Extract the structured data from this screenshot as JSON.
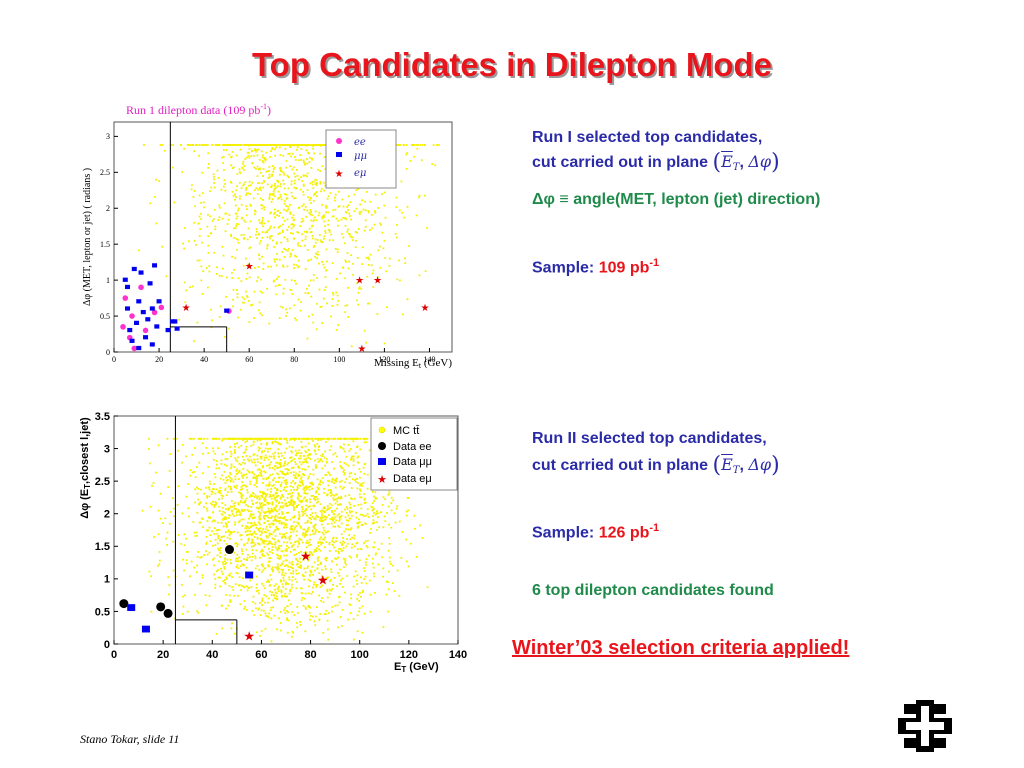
{
  "slide": {
    "title": "Top Candidates in Dilepton Mode",
    "footer": "Stano Tokar, slide 11",
    "note": "Winter’03 selection criteria applied!"
  },
  "text_run1": {
    "line1": "Run I selected top candidates,",
    "line2": "cut carried out in plane",
    "plane_sym1": "E",
    "plane_sub": "T",
    "plane_sep": ",",
    "plane_sym2": "Δφ",
    "def_sym": "Δφ ≡",
    "def_text": "angle(MET, lepton (jet) direction)",
    "sample_label": "Sample:",
    "sample_value": "109 pb",
    "sample_exp": "-1"
  },
  "text_run2": {
    "line1": "Run II selected top candidates,",
    "line2": "cut carried out in plane",
    "plane_sym1": "E",
    "plane_sub": "T",
    "plane_sep": ",",
    "plane_sym2": "Δφ",
    "sample_label": "Sample:",
    "sample_value": "126 pb",
    "sample_exp": "-1",
    "found": "6 top dilepton candidates found"
  },
  "colors": {
    "title": "#e8161c",
    "blue_text": "#2b2ba8",
    "green_text": "#1f8a4a",
    "mc_points": "#ffff00",
    "ee": "#ff33cc",
    "mumu": "#0000ee",
    "emu": "#dd0000",
    "data_ee_run2": "#000000"
  },
  "chart_data": [
    {
      "type": "scatter",
      "title": "Run 1 dilepton data (109 pb",
      "title_exp": "-1",
      "title_close": ")",
      "xlabel": "Missing E",
      "xlabel_sub": "t",
      "xlabel_unit": " (GeV)",
      "ylabel": "Δφ (MET, lepton or jet) ( radians )",
      "xlim": [
        0,
        150
      ],
      "ylim": [
        0,
        3.2
      ],
      "xticks": [
        "0",
        "20",
        "40",
        "60",
        "80",
        "100",
        "120",
        "140"
      ],
      "xtick_values": [
        0,
        20,
        40,
        60,
        80,
        100,
        120,
        140
      ],
      "yticks": [
        "0",
        "0.5",
        "1",
        "1.5",
        "2",
        "2.5",
        "3"
      ],
      "ytick_values": [
        0,
        0.5,
        1,
        1.5,
        2,
        2.5,
        3
      ],
      "cut_lines": [
        [
          25,
          0,
          25,
          3.2
        ],
        [
          25,
          0.35,
          50,
          0.35
        ],
        [
          50,
          0,
          50,
          0.35
        ]
      ],
      "legend": [
        "ee",
        "μμ",
        "eμ"
      ],
      "series": [
        {
          "name": "ee",
          "marker": "circle",
          "points": [
            [
              4,
              0.35
            ],
            [
              5,
              0.75
            ],
            [
              7,
              0.2
            ],
            [
              8,
              0.5
            ],
            [
              9,
              0.05
            ],
            [
              12,
              0.9
            ],
            [
              14,
              0.3
            ],
            [
              18,
              0.55
            ],
            [
              21,
              0.62
            ],
            [
              51,
              0.57
            ]
          ]
        },
        {
          "name": "μμ",
          "marker": "square",
          "points": [
            [
              5,
              1.0
            ],
            [
              6,
              0.6
            ],
            [
              6,
              0.9
            ],
            [
              7,
              0.3
            ],
            [
              8,
              0.15
            ],
            [
              9,
              1.15
            ],
            [
              10,
              0.4
            ],
            [
              11,
              0.05
            ],
            [
              11,
              0.7
            ],
            [
              12,
              1.1
            ],
            [
              13,
              0.55
            ],
            [
              14,
              0.2
            ],
            [
              15,
              0.45
            ],
            [
              16,
              0.95
            ],
            [
              17,
              0.1
            ],
            [
              17,
              0.6
            ],
            [
              18,
              1.2
            ],
            [
              19,
              0.35
            ],
            [
              20,
              0.7
            ],
            [
              24,
              0.3
            ],
            [
              26,
              0.42
            ],
            [
              27,
              0.42
            ],
            [
              28,
              0.32
            ],
            [
              50,
              0.57
            ]
          ]
        },
        {
          "name": "eμ",
          "marker": "star",
          "points": [
            [
              32,
              0.62
            ],
            [
              60,
              1.2
            ],
            [
              109,
              1.0
            ],
            [
              117,
              1.0
            ],
            [
              138,
              0.62
            ],
            [
              110,
              0.05
            ]
          ]
        }
      ]
    },
    {
      "type": "scatter",
      "xlabel": "E",
      "xlabel_sub": "T",
      "xlabel_unit": " (GeV)",
      "ylabel": "Δφ (E",
      "ylabel_sub": "T",
      "ylabel_end": ",closest l,jet)",
      "xlim": [
        0,
        140
      ],
      "ylim": [
        0,
        3.5
      ],
      "xticks": [
        "0",
        "20",
        "40",
        "60",
        "80",
        "100",
        "120",
        "140"
      ],
      "xtick_values": [
        0,
        20,
        40,
        60,
        80,
        100,
        120,
        140
      ],
      "yticks": [
        "0",
        "0.5",
        "1",
        "1.5",
        "2",
        "2.5",
        "3",
        "3.5"
      ],
      "ytick_values": [
        0,
        0.5,
        1,
        1.5,
        2,
        2.5,
        3,
        3.5
      ],
      "cut_lines": [
        [
          25,
          0,
          25,
          3.5
        ],
        [
          25,
          0.37,
          50,
          0.37
        ],
        [
          50,
          0,
          50,
          0.37
        ]
      ],
      "legend": [
        "MC tt̄",
        "Data ee",
        "Data μμ",
        "Data eμ"
      ],
      "series": [
        {
          "name": "Data ee",
          "marker": "circle",
          "points": [
            [
              4,
              0.62
            ],
            [
              19,
              0.57
            ],
            [
              22,
              0.47
            ],
            [
              47,
              1.45
            ]
          ]
        },
        {
          "name": "Data μμ",
          "marker": "square",
          "points": [
            [
              7,
              0.55
            ],
            [
              13,
              0.22
            ],
            [
              55,
              1.05
            ]
          ]
        },
        {
          "name": "Data eμ",
          "marker": "star",
          "points": [
            [
              55,
              0.12
            ],
            [
              78,
              1.35
            ],
            [
              85,
              0.98
            ]
          ]
        }
      ]
    }
  ]
}
